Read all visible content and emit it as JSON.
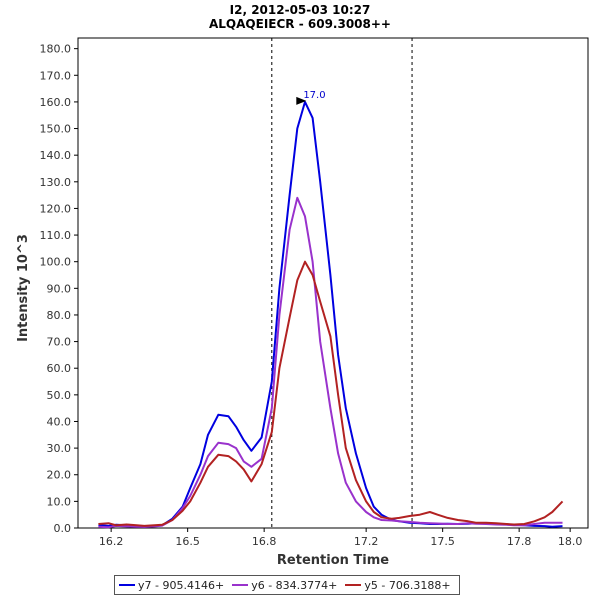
{
  "chart_data": {
    "type": "line",
    "title": "I2, 2012-05-03 10:27",
    "subtitle": "ALQAQEIECR - 609.3008++",
    "xlabel": "Retention Time",
    "ylabel": "Intensity 10^3",
    "xlim": [
      16.07,
      18.07
    ],
    "ylim": [
      0,
      184
    ],
    "x_ticks": [
      "16.2",
      "16.5",
      "16.8",
      "17.2",
      "17.5",
      "17.8",
      "18.0"
    ],
    "y_ticks": [
      "0.0",
      "10.0",
      "20.0",
      "30.0",
      "40.0",
      "50.0",
      "60.0",
      "70.0",
      "80.0",
      "90.0",
      "100.0",
      "110.0",
      "120.0",
      "130.0",
      "140.0",
      "150.0",
      "160.0",
      "170.0",
      "180.0"
    ],
    "grid": false,
    "vlines": [
      16.83,
      17.38
    ],
    "peak_annotation": {
      "text": "17.0",
      "x": 16.985,
      "y": 160,
      "color": "#0000cc"
    },
    "legend_position": "bottom",
    "series": [
      {
        "name": "y7 - 905.4146+",
        "color": "#0000e0",
        "x": [
          16.15,
          16.19,
          16.22,
          16.26,
          16.3,
          16.33,
          16.37,
          16.4,
          16.44,
          16.48,
          16.51,
          16.55,
          16.58,
          16.62,
          16.66,
          16.69,
          16.72,
          16.75,
          16.79,
          16.83,
          16.86,
          16.9,
          16.93,
          16.96,
          16.99,
          17.02,
          17.06,
          17.09,
          17.12,
          17.16,
          17.2,
          17.23,
          17.26,
          17.3,
          17.33,
          17.37,
          17.41,
          17.45,
          17.48,
          17.52,
          17.56,
          17.6,
          17.63,
          17.67,
          17.71,
          17.75,
          17.78,
          17.82,
          17.86,
          17.9,
          17.93,
          17.97
        ],
        "y": [
          1.0,
          0.8,
          1.2,
          1.0,
          0.8,
          0.5,
          0.8,
          1.0,
          3.5,
          8.0,
          15.0,
          24.0,
          35.0,
          42.5,
          42.0,
          38.0,
          33.0,
          29.0,
          34.0,
          55.0,
          90.0,
          125.0,
          150.0,
          160.0,
          154.0,
          130.0,
          95.0,
          65.0,
          45.0,
          28.0,
          15.0,
          8.0,
          5.0,
          3.0,
          2.5,
          2.0,
          1.8,
          1.5,
          1.5,
          1.6,
          1.5,
          1.6,
          1.8,
          1.7,
          1.5,
          1.4,
          1.2,
          1.0,
          0.8,
          0.7,
          0.5,
          0.7
        ]
      },
      {
        "name": "y6 - 834.3774+",
        "color": "#9932cc",
        "x": [
          16.15,
          16.19,
          16.22,
          16.26,
          16.3,
          16.33,
          16.37,
          16.4,
          16.44,
          16.48,
          16.51,
          16.55,
          16.58,
          16.62,
          16.66,
          16.69,
          16.72,
          16.75,
          16.79,
          16.83,
          16.86,
          16.9,
          16.93,
          16.96,
          16.99,
          17.02,
          17.06,
          17.09,
          17.12,
          17.16,
          17.2,
          17.23,
          17.26,
          17.3,
          17.33,
          17.37,
          17.41,
          17.45,
          17.48,
          17.52,
          17.56,
          17.6,
          17.63,
          17.67,
          17.71,
          17.75,
          17.78,
          17.82,
          17.86,
          17.9,
          17.93,
          17.97
        ],
        "y": [
          0.5,
          0.3,
          0.8,
          0.6,
          0.5,
          0.4,
          0.6,
          0.9,
          3.0,
          7.5,
          12.0,
          20.0,
          27.0,
          32.0,
          31.5,
          30.0,
          25.0,
          23.0,
          26.0,
          45.0,
          80.0,
          112.0,
          124.0,
          117.0,
          100.0,
          70.0,
          45.0,
          28.0,
          17.0,
          10.0,
          6.0,
          4.0,
          3.0,
          2.8,
          2.5,
          2.3,
          2.0,
          1.8,
          1.7,
          1.5,
          1.5,
          1.8,
          1.6,
          1.5,
          1.3,
          1.2,
          1.0,
          1.0,
          1.5,
          2.0,
          2.0,
          2.0
        ]
      },
      {
        "name": "y5 - 706.3188+",
        "color": "#b22222",
        "x": [
          16.15,
          16.19,
          16.22,
          16.26,
          16.3,
          16.33,
          16.37,
          16.4,
          16.44,
          16.48,
          16.51,
          16.55,
          16.58,
          16.62,
          16.66,
          16.69,
          16.72,
          16.75,
          16.79,
          16.83,
          16.86,
          16.9,
          16.93,
          16.96,
          16.99,
          17.02,
          17.06,
          17.09,
          17.12,
          17.16,
          17.2,
          17.23,
          17.26,
          17.3,
          17.33,
          17.37,
          17.41,
          17.45,
          17.48,
          17.52,
          17.56,
          17.6,
          17.63,
          17.67,
          17.71,
          17.75,
          17.78,
          17.82,
          17.86,
          17.9,
          17.93,
          17.97
        ],
        "y": [
          1.5,
          1.8,
          1.0,
          1.3,
          1.0,
          0.8,
          1.0,
          1.2,
          3.0,
          6.5,
          10.0,
          17.0,
          23.0,
          27.5,
          27.0,
          25.0,
          22.0,
          17.5,
          24.0,
          36.0,
          60.0,
          79.0,
          93.0,
          100.0,
          95.0,
          85.0,
          72.0,
          50.0,
          30.0,
          18.0,
          10.0,
          6.0,
          4.0,
          3.5,
          3.8,
          4.5,
          5.0,
          6.0,
          5.0,
          3.8,
          3.0,
          2.5,
          2.0,
          2.0,
          1.8,
          1.5,
          1.3,
          1.5,
          2.5,
          4.0,
          6.0,
          10.0
        ]
      }
    ]
  }
}
